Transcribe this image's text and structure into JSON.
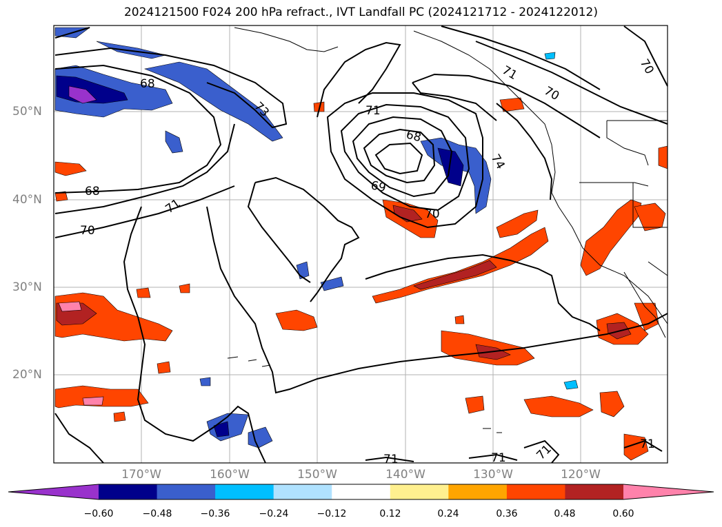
{
  "title": "2024121500 F024 200 hPa refract., IVT Landfall PC (2024121712 - 2024122012)",
  "map": {
    "lat_labels": [
      "50°N",
      "40°N",
      "30°N",
      "20°N"
    ],
    "lon_labels": [
      "170°W",
      "160°W",
      "150°W",
      "140°W",
      "130°W",
      "120°W"
    ],
    "contour_labels": [
      "68",
      "68",
      "70",
      "71",
      "73",
      "71",
      "68",
      "69",
      "70",
      "74",
      "71",
      "70",
      "70",
      "71",
      "71",
      "71",
      "71"
    ]
  },
  "colorbar": {
    "ticks": [
      "−0.60",
      "−0.48",
      "−0.36",
      "−0.24",
      "−0.12",
      "0.12",
      "0.24",
      "0.36",
      "0.48",
      "0.60"
    ],
    "colors": [
      "#9932cc",
      "#00008b",
      "#3a5fcd",
      "#00bfff",
      "#b0e2ff",
      "#ffffff",
      "#fff08f",
      "#ffa500",
      "#ff4500",
      "#b22222",
      "#ff82ab"
    ]
  }
}
